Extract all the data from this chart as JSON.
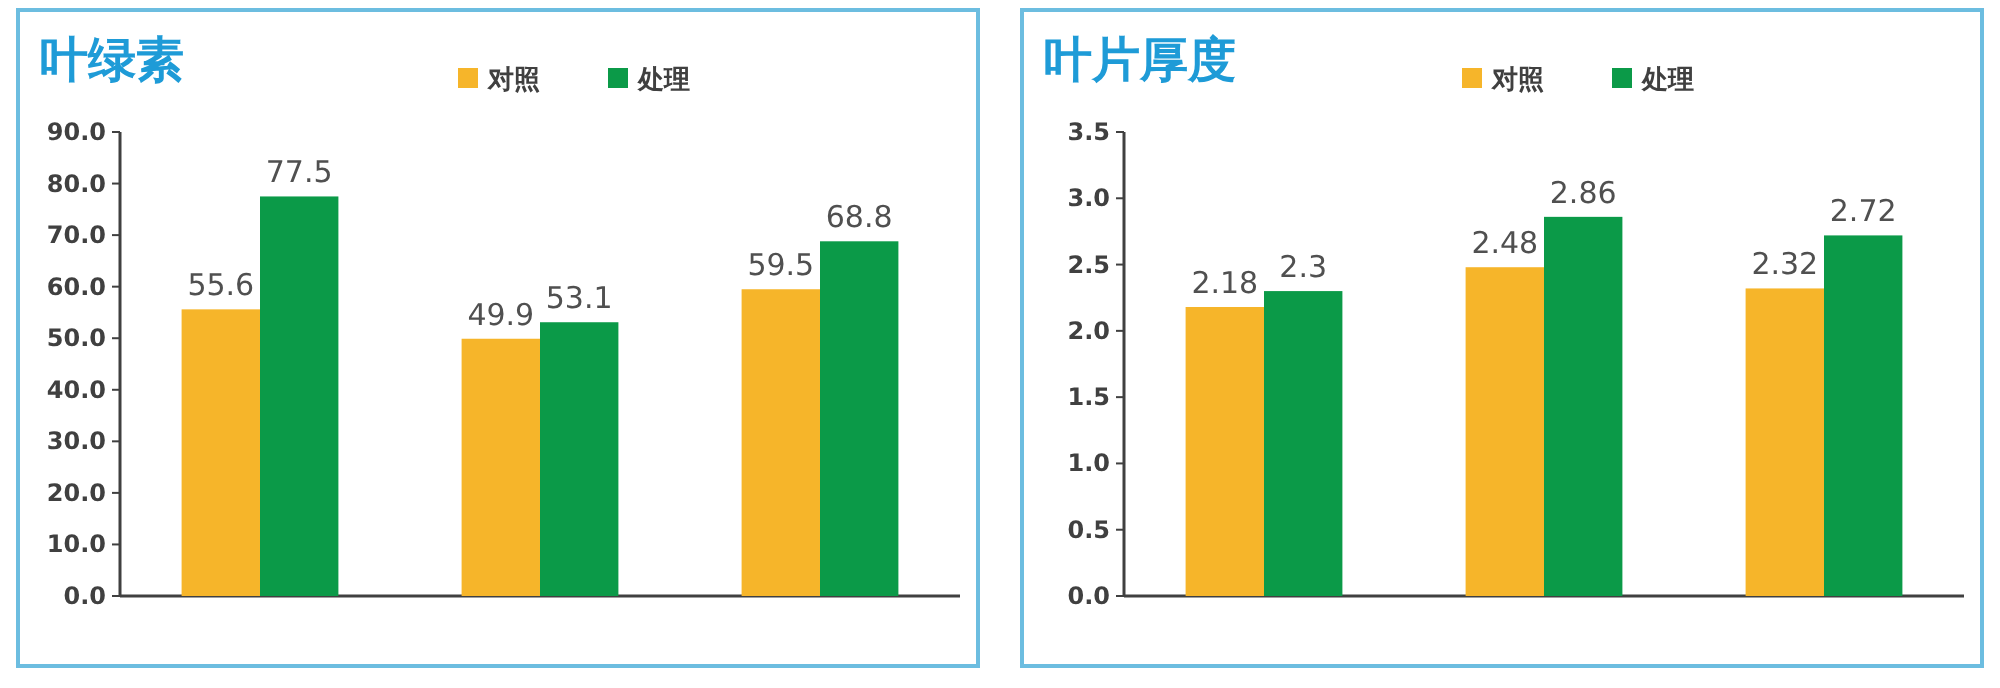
{
  "chart_data": [
    {
      "type": "bar",
      "title": "叶绿素",
      "categories": [
        null,
        null,
        null
      ],
      "series": [
        {
          "name": "对照",
          "color": "#f6b52a",
          "values": [
            55.6,
            49.9,
            59.5
          ]
        },
        {
          "name": "处理",
          "color": "#0b9a48",
          "values": [
            77.5,
            53.1,
            68.8
          ]
        }
      ],
      "ylim": [
        0,
        90
      ],
      "yticks": [
        {
          "value": 0,
          "label": "0.0"
        },
        {
          "value": 10,
          "label": "10.0"
        },
        {
          "value": 20,
          "label": "20.0"
        },
        {
          "value": 30,
          "label": "30.0"
        },
        {
          "value": 40,
          "label": "40.0"
        },
        {
          "value": 50,
          "label": "50.0"
        },
        {
          "value": 60,
          "label": "60.0"
        },
        {
          "value": 70,
          "label": "70.0"
        },
        {
          "value": 80,
          "label": "80.0"
        },
        {
          "value": 90,
          "label": "90.0"
        }
      ],
      "data_labels": true,
      "legend": "top",
      "grid": false
    },
    {
      "type": "bar",
      "title": "叶片厚度",
      "categories": [
        null,
        null,
        null
      ],
      "series": [
        {
          "name": "对照",
          "color": "#f6b52a",
          "values": [
            2.18,
            2.48,
            2.32
          ]
        },
        {
          "name": "处理",
          "color": "#0b9a48",
          "values": [
            2.3,
            2.86,
            2.72
          ]
        }
      ],
      "ylim": [
        0,
        3.5
      ],
      "yticks": [
        {
          "value": 0,
          "label": "0.0"
        },
        {
          "value": 0.5,
          "label": "0.5"
        },
        {
          "value": 1,
          "label": "1.0"
        },
        {
          "value": 1.5,
          "label": "1.5"
        },
        {
          "value": 2,
          "label": "2.0"
        },
        {
          "value": 2.5,
          "label": "2.5"
        },
        {
          "value": 3,
          "label": "3.0"
        },
        {
          "value": 3.5,
          "label": "3.5"
        }
      ],
      "data_labels": true,
      "legend": "top",
      "grid": false
    }
  ]
}
